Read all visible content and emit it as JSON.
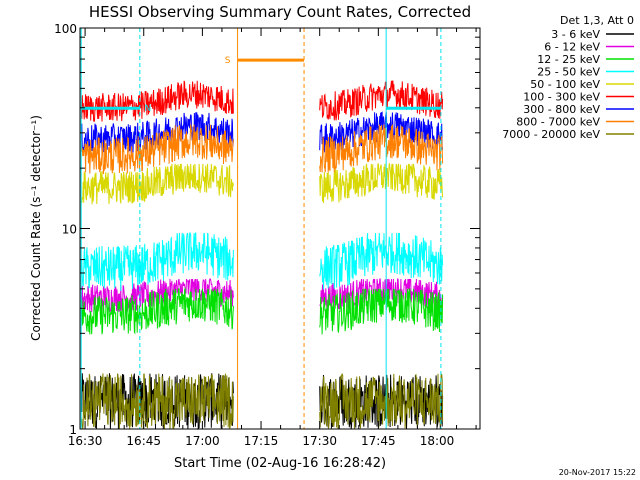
{
  "chart_data": {
    "type": "line",
    "title": "HESSI Observing Summary Count Rates, Corrected",
    "xlabel": "Start Time (02-Aug-16 16:28:42)",
    "ylabel": "Corrected Count Rate (s⁻¹ detector⁻¹)",
    "yscale": "log",
    "ylim": [
      1,
      100
    ],
    "xlim": [
      "16:28:42",
      "18:11:00"
    ],
    "x_ticks": [
      "16:30",
      "16:45",
      "17:00",
      "17:15",
      "17:30",
      "17:45",
      "18:00"
    ],
    "y_ticks": [
      "1",
      "10",
      "100"
    ],
    "legend_title": "Det 1,3, Att 0",
    "legend_position": "right",
    "footer": "20-Nov-2017 15:22",
    "flags": [
      {
        "label": "N",
        "color": "#00e5ee",
        "from": "16:29",
        "to": "16:44",
        "level": 0.95
      },
      {
        "label": "S",
        "color": "#ff8c00",
        "from": "17:09",
        "to": "17:26",
        "level": 0.98
      },
      {
        "label": "",
        "color": "#00e5ee",
        "from": "17:47",
        "to": "18:01",
        "level": 0.95
      }
    ],
    "data_gaps": [
      [
        "17:08",
        "17:30"
      ]
    ],
    "vlines": [
      {
        "time": "16:29",
        "color": "#00e5ee",
        "style": "solid"
      },
      {
        "time": "16:44",
        "color": "#00e5ee",
        "style": "dashed"
      },
      {
        "time": "17:09",
        "color": "#ff8c00",
        "style": "solid"
      },
      {
        "time": "17:26",
        "color": "#ff8c00",
        "style": "dashed"
      },
      {
        "time": "17:47",
        "color": "#00e5ee",
        "style": "solid"
      },
      {
        "time": "18:01",
        "color": "#00e5ee",
        "style": "dashed"
      }
    ],
    "series": [
      {
        "name": "3 - 6 keV",
        "color": "#000000",
        "typical": 1.4,
        "min": 1.0,
        "max": 1.9
      },
      {
        "name": "6 - 12 keV",
        "color": "#e000e0",
        "typical": 4.5,
        "min": 3.5,
        "max": 5.6
      },
      {
        "name": "12 - 25 keV",
        "color": "#00e000",
        "typical": 3.7,
        "min": 2.6,
        "max": 5.0
      },
      {
        "name": "25 - 50 keV",
        "color": "#00ffff",
        "typical": 6.3,
        "min": 4.5,
        "max": 9.5
      },
      {
        "name": "50 - 100 keV",
        "color": "#d8d800",
        "typical": 16.0,
        "min": 12.0,
        "max": 21.0
      },
      {
        "name": "100 - 300 keV",
        "color": "#ff0000",
        "typical": 40.0,
        "min": 34.0,
        "max": 55.0
      },
      {
        "name": "300 - 800 keV",
        "color": "#0000ff",
        "typical": 28.0,
        "min": 23.0,
        "max": 38.0
      },
      {
        "name": "800 - 7000 keV",
        "color": "#ff8000",
        "typical": 23.0,
        "min": 18.0,
        "max": 33.0
      },
      {
        "name": "7000 - 20000 keV",
        "color": "#808000",
        "typical": 1.3,
        "min": 1.0,
        "max": 1.9
      }
    ]
  }
}
